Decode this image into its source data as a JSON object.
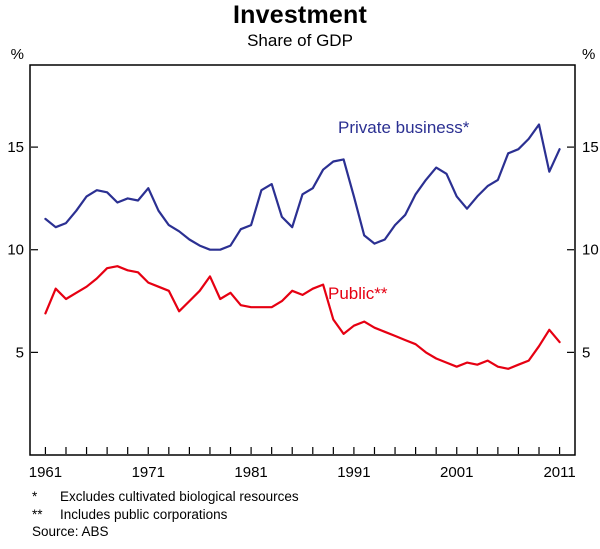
{
  "header": {
    "title": "Investment",
    "subtitle": "Share of GDP"
  },
  "labels": {
    "private": "Private business*",
    "public": "Public**"
  },
  "footnotes": [
    {
      "marker": "*",
      "text": "Excludes cultivated biological resources"
    },
    {
      "marker": "**",
      "text": "Includes public corporations"
    }
  ],
  "source": "Source: ABS",
  "chart_data": {
    "type": "line",
    "title": "Investment",
    "subtitle": "Share of GDP",
    "unit": "%",
    "grid": "off",
    "legend": "inline-labels",
    "ylim": [
      0,
      19
    ],
    "xlim": [
      1959.5,
      2012.5
    ],
    "yticks": [
      5,
      10,
      15
    ],
    "xtick_years": [
      1961,
      1971,
      1981,
      1991,
      2001,
      2011
    ],
    "minor_xtick_step": 2,
    "x": [
      1961,
      1962,
      1963,
      1964,
      1965,
      1966,
      1967,
      1968,
      1969,
      1970,
      1971,
      1972,
      1973,
      1974,
      1975,
      1976,
      1977,
      1978,
      1979,
      1980,
      1981,
      1982,
      1983,
      1984,
      1985,
      1986,
      1987,
      1988,
      1989,
      1990,
      1991,
      1992,
      1993,
      1994,
      1995,
      1996,
      1997,
      1998,
      1999,
      2000,
      2001,
      2002,
      2003,
      2004,
      2005,
      2006,
      2007,
      2008,
      2009,
      2010,
      2011
    ],
    "series": [
      {
        "name": "Private business*",
        "color": "#2b3092",
        "values": [
          11.5,
          11.1,
          11.3,
          11.9,
          12.6,
          12.9,
          12.8,
          12.3,
          12.5,
          12.4,
          13.0,
          11.9,
          11.2,
          10.9,
          10.5,
          10.2,
          10.0,
          10.0,
          10.2,
          11.0,
          11.2,
          12.9,
          13.2,
          11.6,
          11.1,
          12.7,
          13.0,
          13.9,
          14.3,
          14.4,
          12.6,
          10.7,
          10.3,
          10.5,
          11.2,
          11.7,
          12.7,
          13.4,
          14.0,
          13.7,
          12.6,
          12.0,
          12.6,
          13.1,
          13.4,
          14.7,
          14.9,
          15.4,
          16.1,
          13.8,
          14.9
        ]
      },
      {
        "name": "Public**",
        "color": "#e60012",
        "values": [
          6.9,
          8.1,
          7.6,
          7.9,
          8.2,
          8.6,
          9.1,
          9.2,
          9.0,
          8.9,
          8.4,
          8.2,
          8.0,
          7.0,
          7.5,
          8.0,
          8.7,
          7.6,
          7.9,
          7.3,
          7.2,
          7.2,
          7.2,
          7.5,
          8.0,
          7.8,
          8.1,
          8.3,
          6.6,
          5.9,
          6.3,
          6.5,
          6.2,
          6.0,
          5.8,
          5.6,
          5.4,
          5.0,
          4.7,
          4.5,
          4.3,
          4.5,
          4.4,
          4.6,
          4.3,
          4.2,
          4.4,
          4.6,
          5.3,
          6.1,
          5.5
        ]
      }
    ]
  }
}
